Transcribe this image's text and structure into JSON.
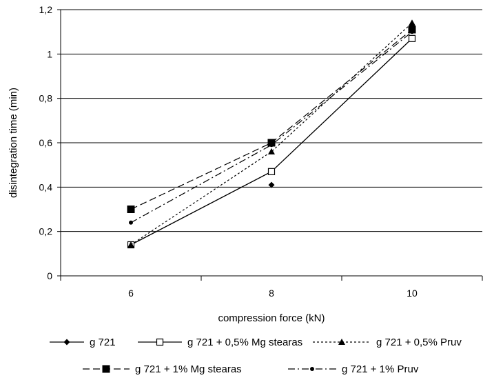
{
  "chart_data": {
    "type": "line",
    "title": "",
    "xlabel": "compression force (kN)",
    "ylabel": "disintegration time (min)",
    "categories": [
      "6",
      "8",
      "10"
    ],
    "y_ticks": [
      "0",
      "0,2",
      "0,4",
      "0,6",
      "0,8",
      "1",
      "1,2"
    ],
    "ylim": [
      0,
      1.2
    ],
    "grid": true,
    "legend_position": "bottom",
    "series": [
      {
        "name": "g 721",
        "values": [
          0.14,
          0.41,
          1.13
        ],
        "marker": "diamond",
        "dash": "solid",
        "line_values": [
          0.14,
          0.47,
          1.07
        ]
      },
      {
        "name": "g 721 + 0,5% Mg stearas",
        "values": [
          0.14,
          0.47,
          1.07
        ],
        "marker": "open-square",
        "dash": "solid"
      },
      {
        "name": "g 721 + 0,5% Pruv",
        "values": [
          0.14,
          0.56,
          1.14
        ],
        "marker": "triangle",
        "dash": "dot"
      },
      {
        "name": "g 721 + 1% Mg stearas",
        "values": [
          0.3,
          0.6,
          1.11
        ],
        "marker": "filled-square",
        "dash": "long-dash"
      },
      {
        "name": "g 721 + 1% Pruv",
        "values": [
          0.24,
          0.59,
          1.1
        ],
        "marker": "circle",
        "dash": "dash-dot"
      }
    ]
  }
}
